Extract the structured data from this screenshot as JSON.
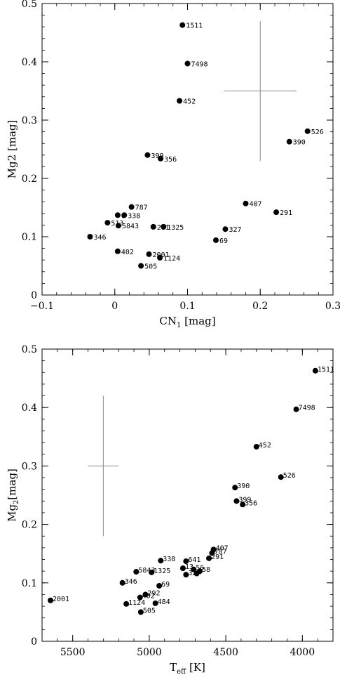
{
  "chart_data": [
    {
      "type": "scatter",
      "xlabel": "CN",
      "xlabel_sub": "1",
      "xlabel_unit": " [mag]",
      "ylabel": "Mg2 [mag]",
      "xlim": [
        -0.1,
        0.3
      ],
      "ylim": [
        0,
        0.5
      ],
      "x_major_ticks": [
        -0.1,
        0,
        0.1,
        0.2,
        0.3
      ],
      "y_major_ticks": [
        0,
        0.1,
        0.2,
        0.3,
        0.4,
        0.5
      ],
      "x_tick_labels": [
        "−0.1",
        "0",
        "0.1",
        "0.2",
        "0.3"
      ],
      "y_tick_labels": [
        "0",
        "0.1",
        "0.2",
        "0.3",
        "0.4",
        "0.5"
      ],
      "error_bar": {
        "x": 0.2,
        "y": 0.35,
        "xerr": 0.05,
        "yerr": 0.12
      },
      "points": [
        {
          "label": "1511",
          "x": 0.093,
          "y": 0.463
        },
        {
          "label": "7498",
          "x": 0.1,
          "y": 0.397
        },
        {
          "label": "452",
          "x": 0.089,
          "y": 0.333
        },
        {
          "label": "526",
          "x": 0.265,
          "y": 0.281
        },
        {
          "label": "390",
          "x": 0.24,
          "y": 0.263
        },
        {
          "label": "399",
          "x": 0.045,
          "y": 0.24
        },
        {
          "label": "356",
          "x": 0.063,
          "y": 0.234
        },
        {
          "label": "407",
          "x": 0.18,
          "y": 0.157
        },
        {
          "label": "787",
          "x": 0.023,
          "y": 0.151
        },
        {
          "label": "291",
          "x": 0.222,
          "y": 0.142
        },
        {
          "label": "6",
          "x": 0.004,
          "y": 0.137
        },
        {
          "label": "338",
          "x": 0.013,
          "y": 0.137
        },
        {
          "label": "513",
          "x": -0.01,
          "y": 0.124
        },
        {
          "label": "5843",
          "x": 0.005,
          "y": 0.119
        },
        {
          "label": "281",
          "x": 0.053,
          "y": 0.117
        },
        {
          "label": "1325",
          "x": 0.067,
          "y": 0.117
        },
        {
          "label": "327",
          "x": 0.152,
          "y": 0.113
        },
        {
          "label": "346",
          "x": -0.034,
          "y": 0.1
        },
        {
          "label": "69",
          "x": 0.139,
          "y": 0.094
        },
        {
          "label": "402",
          "x": 0.004,
          "y": 0.075
        },
        {
          "label": "2001",
          "x": 0.047,
          "y": 0.07
        },
        {
          "label": "1124",
          "x": 0.062,
          "y": 0.064
        },
        {
          "label": "505",
          "x": 0.036,
          "y": 0.05
        }
      ]
    },
    {
      "type": "scatter",
      "xlabel": "T",
      "xlabel_sub": "eff",
      "xlabel_unit": " [K]",
      "ylabel": "Mg",
      "ylabel_sub": "2",
      "ylabel_unit": "[mag]",
      "xlim": [
        5700,
        3800
      ],
      "ylim": [
        0,
        0.5
      ],
      "x_major_ticks": [
        5500,
        5000,
        4500,
        4000
      ],
      "y_major_ticks": [
        0,
        0.1,
        0.2,
        0.3,
        0.4,
        0.5
      ],
      "x_tick_labels": [
        "5500",
        "5000",
        "4500",
        "4000"
      ],
      "y_tick_labels": [
        "0",
        "0.1",
        "0.2",
        "0.3",
        "0.4",
        "0.5"
      ],
      "error_bar": {
        "x": 5300,
        "y": 0.3,
        "xerr": 100,
        "yerr": 0.12
      },
      "points": [
        {
          "label": "1511",
          "x": 3915,
          "y": 0.463
        },
        {
          "label": "7498",
          "x": 4040,
          "y": 0.397
        },
        {
          "label": "452",
          "x": 4300,
          "y": 0.333
        },
        {
          "label": "526",
          "x": 4140,
          "y": 0.281
        },
        {
          "label": "390",
          "x": 4440,
          "y": 0.263
        },
        {
          "label": "399",
          "x": 4430,
          "y": 0.24
        },
        {
          "label": "356",
          "x": 4390,
          "y": 0.234
        },
        {
          "label": "407",
          "x": 4580,
          "y": 0.157
        },
        {
          "label": "787",
          "x": 4590,
          "y": 0.151
        },
        {
          "label": "291",
          "x": 4610,
          "y": 0.142
        },
        {
          "label": "338",
          "x": 4925,
          "y": 0.138
        },
        {
          "label": "641",
          "x": 4760,
          "y": 0.137
        },
        {
          "label": "13",
          "x": 4780,
          "y": 0.125
        },
        {
          "label": "56",
          "x": 4710,
          "y": 0.123
        },
        {
          "label": "58",
          "x": 4670,
          "y": 0.12
        },
        {
          "label": "5843",
          "x": 5085,
          "y": 0.119
        },
        {
          "label": "1325",
          "x": 4985,
          "y": 0.118
        },
        {
          "label": "32",
          "x": 4760,
          "y": 0.114
        },
        {
          "label": "7",
          "x": 4690,
          "y": 0.116
        },
        {
          "label": "346",
          "x": 5175,
          "y": 0.1
        },
        {
          "label": "69",
          "x": 4935,
          "y": 0.095
        },
        {
          "label": "292",
          "x": 5025,
          "y": 0.08
        },
        {
          "label": "402",
          "x": 5060,
          "y": 0.075
        },
        {
          "label": "2001",
          "x": 5645,
          "y": 0.07
        },
        {
          "label": "1124",
          "x": 5150,
          "y": 0.064
        },
        {
          "label": "484",
          "x": 4960,
          "y": 0.065
        },
        {
          "label": "505",
          "x": 5055,
          "y": 0.05
        }
      ]
    }
  ]
}
